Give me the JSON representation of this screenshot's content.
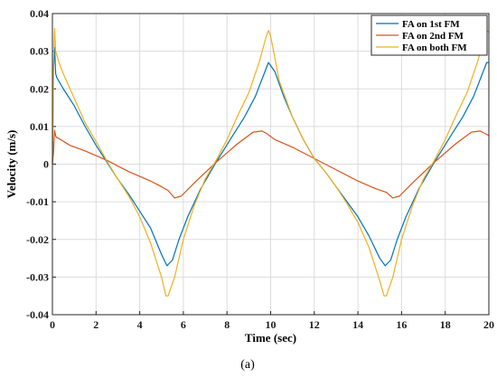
{
  "caption": "(a)",
  "chart_data": {
    "type": "line",
    "xlabel": "Time (sec)",
    "ylabel": "Velocity (m/s)",
    "xlim": [
      0,
      20
    ],
    "ylim": [
      -0.04,
      0.04
    ],
    "xticks": [
      "0",
      "2",
      "4",
      "6",
      "8",
      "10",
      "12",
      "14",
      "16",
      "18",
      "20"
    ],
    "yticks": [
      "0.04",
      "0.03",
      "0.02",
      "0.01",
      "0",
      "-0.01",
      "-0.02",
      "-0.03",
      "-0.04"
    ],
    "grid": true,
    "legend_position": "top-right",
    "series": [
      {
        "name": "FA on 1st FM",
        "color": "#0072BD",
        "x": [
          0,
          0.05,
          0.1,
          0.15,
          0.2,
          0.3,
          0.5,
          1.0,
          1.5,
          2.0,
          2.5,
          3.0,
          3.5,
          4.0,
          4.5,
          5.0,
          5.25,
          5.5,
          5.8,
          6.2,
          6.8,
          7.5,
          8.2,
          8.8,
          9.3,
          9.7,
          9.9,
          10.2,
          10.6,
          11.0,
          11.5,
          12.0,
          12.5,
          13.0,
          13.5,
          14.0,
          14.5,
          15.0,
          15.25,
          15.5,
          15.8,
          16.2,
          16.8,
          17.5,
          18.2,
          18.8,
          19.3,
          19.7,
          19.9,
          20.0
        ],
        "y": [
          0,
          0.025,
          0.031,
          0.024,
          0.023,
          0.022,
          0.02,
          0.0155,
          0.01,
          0.005,
          0.0005,
          -0.004,
          -0.008,
          -0.0125,
          -0.017,
          -0.024,
          -0.027,
          -0.0255,
          -0.02,
          -0.014,
          -0.0065,
          0.0005,
          0.007,
          0.0125,
          0.018,
          0.024,
          0.027,
          0.0245,
          0.018,
          0.0125,
          0.0065,
          0.0015,
          -0.002,
          -0.006,
          -0.01,
          -0.014,
          -0.019,
          -0.025,
          -0.027,
          -0.0255,
          -0.02,
          -0.014,
          -0.0065,
          0.0005,
          0.007,
          0.0125,
          0.018,
          0.024,
          0.027,
          0.027
        ]
      },
      {
        "name": "FA on 2nd FM",
        "color": "#D95319",
        "x": [
          0,
          0.05,
          0.1,
          0.15,
          0.2,
          0.3,
          0.8,
          1.5,
          2.5,
          3.5,
          4.5,
          5.0,
          5.3,
          5.6,
          5.9,
          6.5,
          7.5,
          8.5,
          9.2,
          9.6,
          9.8,
          10.2,
          11.0,
          12.0,
          13.0,
          14.0,
          14.8,
          15.3,
          15.6,
          15.9,
          16.5,
          17.5,
          18.5,
          19.2,
          19.6,
          19.8,
          20.0
        ],
        "y": [
          0,
          0.003,
          0.009,
          0.0075,
          0.007,
          0.0068,
          0.005,
          0.0035,
          0.001,
          -0.002,
          -0.0045,
          -0.006,
          -0.007,
          -0.009,
          -0.0085,
          -0.005,
          0.0005,
          0.0055,
          0.0085,
          0.0088,
          0.0082,
          0.0065,
          0.0045,
          0.0015,
          -0.0015,
          -0.0045,
          -0.0065,
          -0.0075,
          -0.009,
          -0.0085,
          -0.005,
          0.0005,
          0.0055,
          0.0085,
          0.0088,
          0.0082,
          0.0076
        ]
      },
      {
        "name": "FA on both FM",
        "color": "#EDB120",
        "x": [
          0,
          0.05,
          0.1,
          0.15,
          0.2,
          0.3,
          0.5,
          1.0,
          1.5,
          2.0,
          2.5,
          3.0,
          3.5,
          4.0,
          4.5,
          5.0,
          5.2,
          5.3,
          5.6,
          6.0,
          6.5,
          7.0,
          7.5,
          8.0,
          8.5,
          9.0,
          9.5,
          9.8,
          9.9,
          10.0,
          10.4,
          11.0,
          11.5,
          12.0,
          12.5,
          13.0,
          13.5,
          14.0,
          14.5,
          15.0,
          15.2,
          15.3,
          15.6,
          16.0,
          16.5,
          17.0,
          17.5,
          18.0,
          18.5,
          19.0,
          19.5,
          19.8,
          19.9,
          20.0
        ],
        "y": [
          0,
          0.027,
          0.036,
          0.03,
          0.029,
          0.027,
          0.024,
          0.0175,
          0.011,
          0.006,
          0.0008,
          -0.004,
          -0.0085,
          -0.014,
          -0.021,
          -0.03,
          -0.035,
          -0.035,
          -0.03,
          -0.02,
          -0.011,
          -0.004,
          0.001,
          0.0065,
          0.013,
          0.019,
          0.0275,
          0.034,
          0.0355,
          0.034,
          0.022,
          0.0125,
          0.0065,
          0.0015,
          -0.002,
          -0.006,
          -0.0105,
          -0.0155,
          -0.022,
          -0.031,
          -0.035,
          -0.035,
          -0.03,
          -0.02,
          -0.011,
          -0.004,
          0.001,
          0.0065,
          0.013,
          0.019,
          0.0275,
          0.034,
          0.0355,
          0.035
        ]
      }
    ]
  }
}
